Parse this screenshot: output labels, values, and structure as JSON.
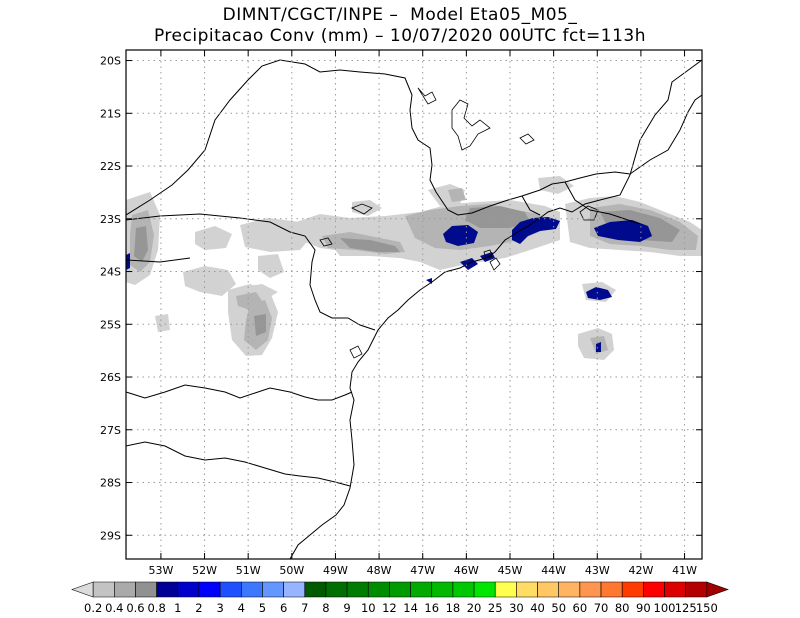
{
  "title": {
    "line1": "DIMNT/CGCT/INPE –  Model Eta05_M05_",
    "line2": "Precipitacao Conv (mm) – 10/07/2020 00UTC fct=113h"
  },
  "map": {
    "lon_range": [
      -53.8,
      -40.6
    ],
    "lat_range": [
      -29.45,
      -19.8
    ],
    "y_ticks": [
      {
        "label": "20S",
        "lat": -20
      },
      {
        "label": "21S",
        "lat": -21
      },
      {
        "label": "22S",
        "lat": -22
      },
      {
        "label": "23S",
        "lat": -23
      },
      {
        "label": "24S",
        "lat": -24
      },
      {
        "label": "25S",
        "lat": -25
      },
      {
        "label": "26S",
        "lat": -26
      },
      {
        "label": "27S",
        "lat": -27
      },
      {
        "label": "28S",
        "lat": -28
      },
      {
        "label": "29S",
        "lat": -29
      }
    ],
    "x_ticks": [
      {
        "label": "53W",
        "lon": -53
      },
      {
        "label": "52W",
        "lon": -52
      },
      {
        "label": "51W",
        "lon": -51
      },
      {
        "label": "50W",
        "lon": -50
      },
      {
        "label": "49W",
        "lon": -49
      },
      {
        "label": "48W",
        "lon": -48
      },
      {
        "label": "47W",
        "lon": -47
      },
      {
        "label": "46W",
        "lon": -46
      },
      {
        "label": "45W",
        "lon": -45
      },
      {
        "label": "44W",
        "lon": -44
      },
      {
        "label": "43W",
        "lon": -43
      },
      {
        "label": "42W",
        "lon": -42
      },
      {
        "label": "41W",
        "lon": -41
      }
    ],
    "grid": "dotted",
    "colors": {
      "gray_light": "#d2d2d2",
      "gray_mid": "#b4b4b4",
      "gray_dark": "#969696",
      "navy": "#000a8c",
      "border": "#000000"
    }
  },
  "colorbar": {
    "labels": [
      "0.2",
      "0.4",
      "0.6",
      "0.8",
      "1",
      "2",
      "3",
      "4",
      "5",
      "6",
      "7",
      "8",
      "9",
      "10",
      "12",
      "14",
      "16",
      "18",
      "20",
      "25",
      "30",
      "40",
      "50",
      "60",
      "70",
      "80",
      "90",
      "100",
      "125",
      "150"
    ],
    "colors": [
      "#dcdcdc",
      "#c3c3c3",
      "#aaaaaa",
      "#919191",
      "#000096",
      "#0000cd",
      "#0000ff",
      "#1e50ff",
      "#3c78ff",
      "#6496ff",
      "#96b4ff",
      "#005a00",
      "#006e00",
      "#007d00",
      "#008c00",
      "#009b00",
      "#00aa00",
      "#00b900",
      "#00c800",
      "#00e600",
      "#ffff50",
      "#ffdc64",
      "#ffc864",
      "#ffb464",
      "#ff9650",
      "#ff7832",
      "#ff3c00",
      "#ff0000",
      "#dc0000",
      "#b40000",
      "#a00000"
    ]
  }
}
